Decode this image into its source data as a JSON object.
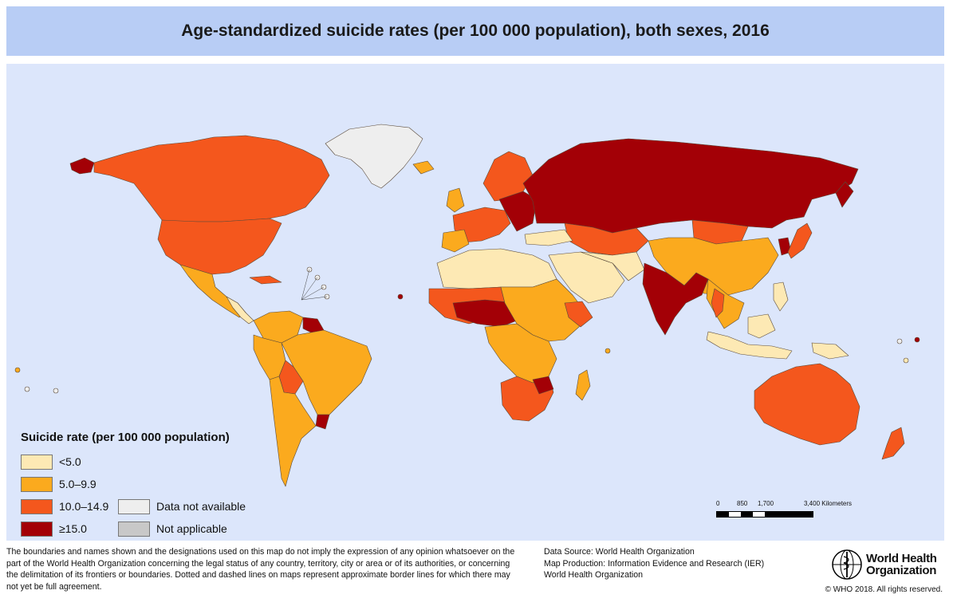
{
  "title": "Age-standardized suicide rates (per 100 000 population), both sexes, 2016",
  "colors": {
    "ocean": "#dce6fb",
    "lt5": "#fde9b4",
    "r5_9": "#fbaa1e",
    "r10_14": "#f4571d",
    "ge15": "#a30006",
    "na": "#eeeeee",
    "not_applicable": "#c8c8c8",
    "border": "#5a4a3a"
  },
  "legend": {
    "title": "Suicide rate (per 100 000 population)",
    "items": [
      {
        "label": "<5.0",
        "color_key": "lt5"
      },
      {
        "label": "5.0–9.9",
        "color_key": "r5_9"
      },
      {
        "label": "10.0–14.9",
        "color_key": "r10_14"
      },
      {
        "label": "≥15.0",
        "color_key": "ge15"
      },
      {
        "label": "Data not available",
        "color_key": "na"
      },
      {
        "label": "Not applicable",
        "color_key": "not_applicable"
      }
    ]
  },
  "scale": {
    "ticks": [
      "0",
      "850",
      "1,700",
      "3,400 Kilometers"
    ]
  },
  "disclaimer": "The boundaries and names shown and the designations used on this map do not imply the expression of any opinion whatsoever on the part of the World Health Organization concerning the legal status of any country, territory, city or area or of its authorities, or concerning the delimitation of its frontiers or boundaries. Dotted and dashed lines on maps represent approximate border lines for which there may not yet be full agreement.",
  "source": {
    "line1": "Data Source: World Health Organization",
    "line2": "Map Production: Information Evidence and Research (IER)",
    "line3": "World Health Organization"
  },
  "logo": {
    "line1": "World Health",
    "line2": "Organization"
  },
  "copyright": "© WHO 2018. All rights reserved."
}
